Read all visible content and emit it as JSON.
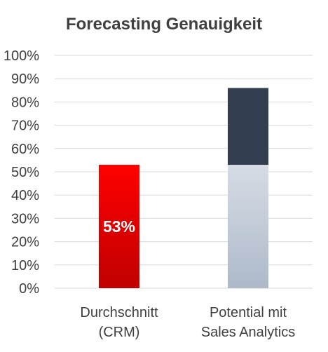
{
  "chart_data": {
    "type": "bar",
    "title": "Forecasting Genauigkeit",
    "categories": [
      [
        "Durchschnitt",
        "(CRM)"
      ],
      [
        "Potential mit",
        "Sales Analytics"
      ]
    ],
    "series": [
      {
        "values": [
          53,
          53
        ]
      },
      {
        "values": [
          0,
          33
        ]
      }
    ],
    "data_labels": [
      "53%",
      ""
    ],
    "yticks": [
      "0%",
      "10%",
      "20%",
      "30%",
      "40%",
      "50%",
      "60%",
      "70%",
      "80%",
      "90%",
      "100%"
    ],
    "ylim": [
      0,
      100
    ],
    "stacked": true,
    "grid": true,
    "legend": "none",
    "colors": {
      "bar1_top": "#ff0000",
      "bar1_bottom": "#c00000",
      "bar2_base_top": "#d6dce4",
      "bar2_base_bottom": "#adb9ca",
      "bar2_increment": "#333f50",
      "grid": "#d9d9d9",
      "text": "#404040"
    }
  }
}
